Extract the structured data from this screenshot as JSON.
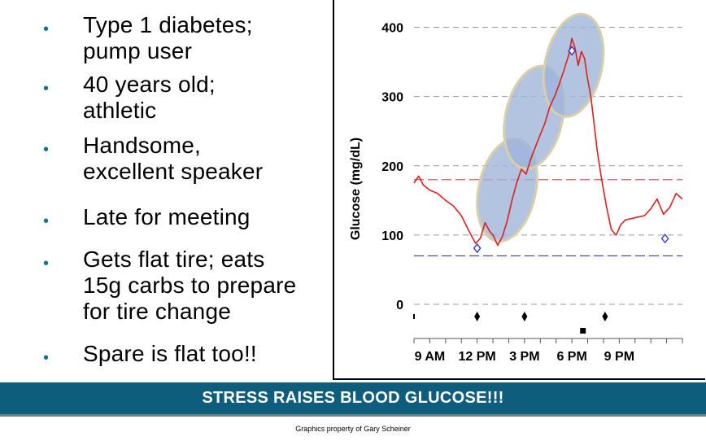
{
  "bullets": [
    {
      "lines": [
        "Type 1 diabetes;",
        "pump user"
      ]
    },
    {
      "lines": [
        "40 years old;",
        "athletic"
      ]
    },
    {
      "lines": [
        "Handsome,",
        "excellent  speaker"
      ]
    },
    {
      "lines": [
        "Late for meeting"
      ]
    },
    {
      "lines": [
        "Gets flat tire; eats",
        "15g carbs to prepare",
        "for tire change"
      ]
    },
    {
      "lines": [
        "Spare is flat too!!"
      ]
    }
  ],
  "banner": "STRESS RAISES BLOOD GLUCOSE!!!",
  "credit": "Graphics property of Gary Scheiner",
  "chart_data": {
    "type": "line",
    "ylabel": "Glucose (mg/dL)",
    "xlabel": "",
    "title": "",
    "ylim": [
      -50,
      400
    ],
    "y_ticks": [
      0,
      100,
      200,
      300,
      400
    ],
    "x_tick_labels": [
      "9 AM",
      "12 PM",
      "3 PM",
      "6 PM",
      "9 PM"
    ],
    "x_ticks_hours": [
      9,
      12,
      15,
      18,
      21
    ],
    "xlim_hours": [
      8,
      25
    ],
    "reference_lines": [
      {
        "value": 180,
        "color": "#e05050"
      },
      {
        "value": 70,
        "color": "#3a3ad0"
      }
    ],
    "grid": true,
    "series": [
      {
        "color": "#dd1f1f",
        "x": [
          8.0,
          8.3,
          8.6,
          9.0,
          9.5,
          10.0,
          10.5,
          11.0,
          11.5,
          11.9,
          12.2,
          12.5,
          12.8,
          13.0,
          13.3,
          13.6,
          13.9,
          14.2,
          14.5,
          14.8,
          15.1,
          15.4,
          15.7,
          16.0,
          16.3,
          16.6,
          16.9,
          17.2,
          17.5,
          17.8,
          18.0,
          18.2,
          18.4,
          18.6,
          18.8,
          19.0,
          19.2,
          19.4,
          19.6,
          19.9,
          20.2,
          20.5,
          20.8,
          21.1,
          21.4,
          21.8,
          22.2,
          22.6,
          23.0,
          23.4,
          23.8,
          24.2,
          24.6,
          25.0
        ],
        "y": [
          175,
          185,
          172,
          165,
          160,
          150,
          142,
          128,
          105,
          88,
          95,
          118,
          105,
          100,
          85,
          98,
          120,
          150,
          175,
          195,
          188,
          210,
          228,
          245,
          262,
          285,
          300,
          318,
          338,
          360,
          384,
          370,
          345,
          365,
          355,
          325,
          300,
          262,
          222,
          178,
          140,
          108,
          100,
          115,
          122,
          124,
          126,
          128,
          138,
          152,
          130,
          140,
          160,
          152
        ]
      }
    ],
    "fingerstick_points": [
      {
        "x": 12.0,
        "y": 81
      },
      {
        "x": 18.0,
        "y": 366
      },
      {
        "x": 23.9,
        "y": 95
      }
    ],
    "highlight_ellipses": [
      {
        "cx": 13.9,
        "cy": 165
      },
      {
        "cx": 15.6,
        "cy": 270
      },
      {
        "cx": 18.1,
        "cy": 345
      }
    ],
    "event_markers": [
      {
        "x": 12.0,
        "symbol": "diamond"
      },
      {
        "x": 15.0,
        "symbol": "diamond"
      },
      {
        "x": 20.1,
        "symbol": "diamond"
      },
      {
        "x": 18.7,
        "symbol": "square"
      }
    ],
    "colors": {
      "line": "#dd1f1f",
      "ellipse_fill": "#9db4d9",
      "ellipse_stroke": "#d8cfaa",
      "high_ref": "#e05050",
      "low_ref": "#3a3ad0",
      "grid": "#9a9a9a"
    }
  }
}
